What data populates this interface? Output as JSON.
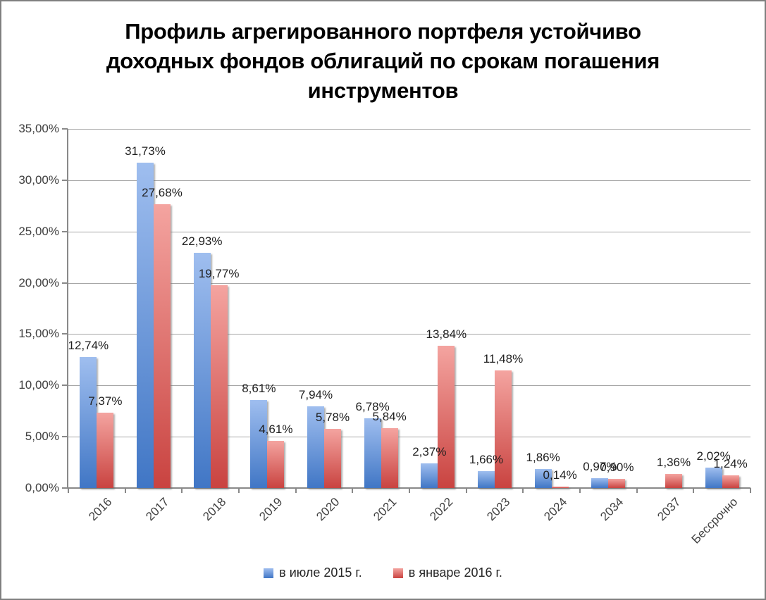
{
  "title_lines": [
    "Профиль агрегированного портфеля устойчиво",
    "доходных фондов облигаций по срокам погашения",
    "инструментов"
  ],
  "colors": {
    "gridline": "#a6a6a6",
    "axis": "#898989",
    "axis_label": "#404040",
    "series_blue_top": "#9fbeef",
    "series_blue_bottom": "#4076c5",
    "series_red_top": "#f4a4a0",
    "series_red_bottom": "#c94340"
  },
  "chart_data": {
    "type": "bar",
    "title": "Профиль агрегированного портфеля устойчиво доходных фондов облигаций по срокам погашения инструментов",
    "categories": [
      "2016",
      "2017",
      "2018",
      "2019",
      "2020",
      "2021",
      "2022",
      "2023",
      "2024",
      "2034",
      "2037",
      "Бессрочно"
    ],
    "series": [
      {
        "key": "july-2015",
        "name": "в июле 2015 г.",
        "color_top": "#9fbeef",
        "color_bottom": "#4076c5",
        "values": [
          12.74,
          31.73,
          22.93,
          8.61,
          7.94,
          6.78,
          2.37,
          1.66,
          1.86,
          0.97,
          null,
          2.02
        ],
        "labels": [
          "12,74%",
          "31,73%",
          "22,93%",
          "8,61%",
          "7,94%",
          "6,78%",
          "2,37%",
          "1,66%",
          "1,86%",
          "0,97%",
          null,
          "2,02%"
        ]
      },
      {
        "key": "january-2016",
        "name": "в январе 2016 г.",
        "color_top": "#f4a4a0",
        "color_bottom": "#c94340",
        "values": [
          7.37,
          27.68,
          19.77,
          4.61,
          5.78,
          5.84,
          13.84,
          11.48,
          0.14,
          0.9,
          1.36,
          1.24
        ],
        "labels": [
          "7,37%",
          "27,68%",
          "19,77%",
          "4,61%",
          "5,78%",
          "5,84%",
          "13,84%",
          "11,48%",
          "0,14%",
          "0,90%",
          "1,36%",
          "1,24%"
        ]
      }
    ],
    "y_axis": {
      "min": 0,
      "max": 35,
      "step": 5,
      "tick_labels": [
        "0,00%",
        "5,00%",
        "10,00%",
        "15,00%",
        "20,00%",
        "25,00%",
        "30,00%",
        "35,00%"
      ],
      "grid": true
    },
    "x_axis": {
      "label_rotation_deg": -45
    },
    "legend_position": "bottom"
  }
}
